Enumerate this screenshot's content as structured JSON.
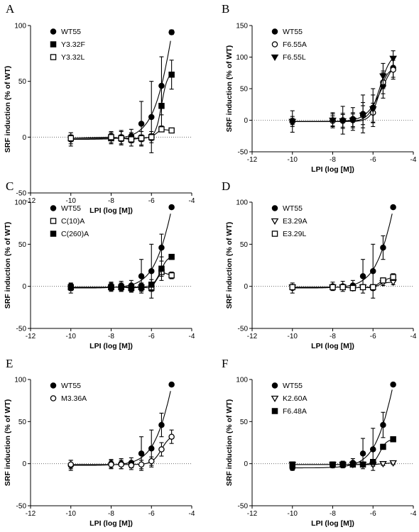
{
  "chart_data": [
    {
      "panel": "A",
      "type": "scatter",
      "xlabel": "LPI (log [M])",
      "ylabel": "SRF induction (% of WT)",
      "xlim": [
        -12,
        -4
      ],
      "ylim": [
        -50,
        100
      ],
      "xticks": [
        -12,
        -10,
        -8,
        -6,
        -4
      ],
      "yticks": [
        -50,
        0,
        50,
        100
      ],
      "legend_position": "top-left",
      "x": [
        -10,
        -8,
        -7.5,
        -7,
        -6.5,
        -6,
        -5.5,
        -5
      ],
      "series": [
        {
          "name": "WT55",
          "marker": "filled-circle",
          "values": [
            -2,
            0,
            0,
            1,
            12,
            18,
            46,
            94
          ],
          "err": [
            6,
            5,
            6,
            6,
            20,
            32,
            26,
            2
          ],
          "fit": "steep"
        },
        {
          "name": "Y3.32F",
          "marker": "filled-square",
          "values": [
            -1,
            -1,
            -1,
            -2,
            -1,
            0,
            28,
            56
          ],
          "err": [
            5,
            5,
            6,
            6,
            6,
            5,
            18,
            13
          ],
          "fit": "moderate"
        },
        {
          "name": "Y3.32L",
          "marker": "open-square",
          "values": [
            -1,
            0,
            -1,
            -2,
            -1,
            0,
            7,
            6
          ],
          "err": [
            3,
            3,
            3,
            3,
            3,
            3,
            2,
            2
          ],
          "fit": "none"
        }
      ]
    },
    {
      "panel": "B",
      "type": "scatter",
      "xlabel": "LPI (log [M])",
      "ylabel": "SRF induction (% of WT)",
      "xlim": [
        -12,
        -4
      ],
      "ylim": [
        -50,
        150
      ],
      "xticks": [
        -12,
        -10,
        -8,
        -6,
        -4
      ],
      "yticks": [
        -50,
        0,
        50,
        100,
        150
      ],
      "legend_position": "top-left",
      "x": [
        -10,
        -8,
        -7.5,
        -7,
        -6.5,
        -6,
        -5.5,
        -5
      ],
      "series": [
        {
          "name": "WT55",
          "marker": "filled-circle",
          "values": [
            -2,
            0,
            0,
            2,
            10,
            20,
            55,
            83
          ],
          "err": [
            17,
            12,
            22,
            18,
            30,
            30,
            20,
            15
          ],
          "fit": "moderate"
        },
        {
          "name": "F6.55A",
          "marker": "open-circle",
          "values": [
            -2,
            -1,
            -1,
            0,
            8,
            12,
            60,
            80
          ],
          "err": [
            5,
            8,
            10,
            10,
            15,
            15,
            18,
            15
          ],
          "fit": "moderate"
        },
        {
          "name": "F6.55L",
          "marker": "filled-down-triangle",
          "values": [
            -2,
            0,
            -1,
            0,
            8,
            18,
            70,
            98
          ],
          "err": [
            8,
            10,
            12,
            12,
            20,
            22,
            20,
            12
          ],
          "fit": "steep"
        }
      ]
    },
    {
      "panel": "C",
      "type": "scatter",
      "xlabel": "LPI (log [M])",
      "ylabel": "SRF induction (% of WT)",
      "xlim": [
        -12,
        -4
      ],
      "ylim": [
        -50,
        100
      ],
      "xticks": [
        -12,
        -10,
        -8,
        -6,
        -4
      ],
      "yticks": [
        -50,
        0,
        50,
        100
      ],
      "legend_position": "top-left",
      "x": [
        -10,
        -8,
        -7.5,
        -7,
        -6.5,
        -6,
        -5.5,
        -5
      ],
      "series": [
        {
          "name": "WT55",
          "marker": "filled-circle",
          "values": [
            -2,
            0,
            0,
            1,
            12,
            18,
            46,
            94
          ],
          "err": [
            6,
            5,
            6,
            6,
            20,
            32,
            16,
            2
          ],
          "fit": "steep"
        },
        {
          "name": "C(10)A",
          "marker": "open-square",
          "values": [
            -1,
            -1,
            -1,
            -2,
            -1,
            -2,
            17,
            13
          ],
          "err": [
            4,
            4,
            4,
            4,
            4,
            4,
            5,
            4
          ],
          "fit": "none"
        },
        {
          "name": "C(260)A",
          "marker": "filled-square",
          "values": [
            -1,
            -1,
            -1,
            -2,
            -1,
            2,
            21,
            35
          ],
          "err": [
            4,
            5,
            5,
            5,
            5,
            6,
            14,
            3
          ],
          "fit": "moderate"
        }
      ]
    },
    {
      "panel": "D",
      "type": "scatter",
      "xlabel": "LPI (log [M])",
      "ylabel": "SRF induction (% of WT)",
      "xlim": [
        -12,
        -4
      ],
      "ylim": [
        -50,
        100
      ],
      "xticks": [
        -12,
        -10,
        -8,
        -6,
        -4
      ],
      "yticks": [
        -50,
        0,
        50,
        100
      ],
      "legend_position": "top-left",
      "x": [
        -10,
        -8,
        -7.5,
        -7,
        -6.5,
        -6,
        -5.5,
        -5
      ],
      "series": [
        {
          "name": "WT55",
          "marker": "filled-circle",
          "values": [
            -2,
            0,
            0,
            1,
            12,
            18,
            46,
            94
          ],
          "err": [
            6,
            5,
            6,
            6,
            20,
            32,
            14,
            2
          ],
          "fit": "steep"
        },
        {
          "name": "E3.29A",
          "marker": "open-down-triangle",
          "values": [
            -1,
            -1,
            -1,
            -2,
            -1,
            -2,
            4,
            5
          ],
          "err": [
            3,
            3,
            3,
            3,
            3,
            3,
            3,
            3
          ],
          "fit": "none"
        },
        {
          "name": "E3.29L",
          "marker": "open-square",
          "values": [
            -1,
            -1,
            -1,
            -2,
            -1,
            -1,
            7,
            11
          ],
          "err": [
            3,
            3,
            3,
            3,
            3,
            3,
            3,
            4
          ],
          "fit": "none"
        }
      ]
    },
    {
      "panel": "E",
      "type": "scatter",
      "xlabel": "LPI (log [M])",
      "ylabel": "SRF induction (% of WT)",
      "xlim": [
        -12,
        -4
      ],
      "ylim": [
        -50,
        100
      ],
      "xticks": [
        -12,
        -10,
        -8,
        -6,
        -4
      ],
      "yticks": [
        -50,
        0,
        50,
        100
      ],
      "legend_position": "top-left",
      "x": [
        -10,
        -8,
        -7.5,
        -7,
        -6.5,
        -6,
        -5.5,
        -5
      ],
      "series": [
        {
          "name": "WT55",
          "marker": "filled-circle",
          "values": [
            -2,
            0,
            0,
            1,
            12,
            18,
            46,
            94
          ],
          "err": [
            6,
            5,
            6,
            6,
            20,
            22,
            14,
            2
          ],
          "fit": "steep"
        },
        {
          "name": "M3.36A",
          "marker": "open-circle",
          "values": [
            -1,
            -1,
            -1,
            -2,
            -1,
            3,
            17,
            32
          ],
          "err": [
            5,
            5,
            5,
            5,
            5,
            5,
            8,
            8
          ],
          "fit": "moderate"
        }
      ]
    },
    {
      "panel": "F",
      "type": "scatter",
      "xlabel": "LPI (log [M])",
      "ylabel": "SRF induction (% of WT)",
      "xlim": [
        -12,
        -4
      ],
      "ylim": [
        -50,
        100
      ],
      "xticks": [
        -12,
        -10,
        -8,
        -6,
        -4
      ],
      "yticks": [
        -50,
        0,
        50,
        100
      ],
      "legend_position": "top-left",
      "x": [
        -10,
        -8,
        -7.5,
        -7,
        -6.5,
        -6,
        -5.5,
        -5
      ],
      "series": [
        {
          "name": "WT55",
          "marker": "filled-circle",
          "values": [
            -5,
            -2,
            -1,
            1,
            12,
            17,
            46,
            94
          ],
          "err": [
            3,
            3,
            4,
            5,
            18,
            25,
            15,
            2
          ],
          "fit": "steep"
        },
        {
          "name": "K2.60A",
          "marker": "open-down-triangle",
          "values": [
            -1,
            -1,
            -1,
            -1,
            -1,
            -1,
            0,
            1
          ],
          "err": [
            2,
            2,
            2,
            2,
            2,
            2,
            2,
            2
          ],
          "fit": "none"
        },
        {
          "name": "F6.48A",
          "marker": "filled-square",
          "values": [
            -1,
            -1,
            -1,
            -1,
            -1,
            2,
            20,
            29
          ],
          "err": [
            3,
            3,
            3,
            3,
            3,
            3,
            3,
            3
          ],
          "fit": "moderate"
        }
      ]
    }
  ]
}
